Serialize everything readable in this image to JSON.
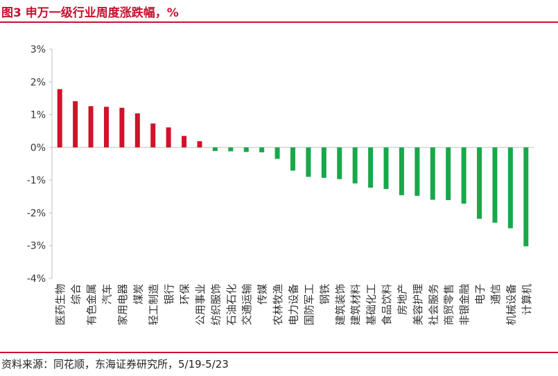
{
  "header": {
    "title": "图3  申万一级行业周度涨跌幅，%"
  },
  "footer": {
    "source": "资料来源：同花顺，东海证券研究所，5/19-5/23"
  },
  "colors": {
    "accent": "#c8102e",
    "positive": "#d0132a",
    "negative": "#18a84a",
    "axis": "#bfbfbf"
  },
  "chart_data": {
    "type": "bar",
    "title": "申万一级行业周度涨跌幅，%",
    "xlabel": "",
    "ylabel": "",
    "ylim": [
      -4,
      3
    ],
    "yticks": [
      "3%",
      "2%",
      "1%",
      "0%",
      "-1%",
      "-2%",
      "-3%",
      "-4%"
    ],
    "grid": false,
    "categories": [
      "医药生物",
      "综合",
      "有色金属",
      "汽车",
      "家用电器",
      "煤炭",
      "轻工制造",
      "银行",
      "环保",
      "公用事业",
      "纺织服饰",
      "石油石化",
      "交通运输",
      "传媒",
      "农林牧渔",
      "电力设备",
      "国防军工",
      "钢铁",
      "建筑装饰",
      "建筑材料",
      "基础化工",
      "食品饮料",
      "房地产",
      "美容护理",
      "社会服务",
      "商贸零售",
      "非银金融",
      "电子",
      "通信",
      "机械设备",
      "计算机"
    ],
    "values": [
      1.78,
      1.41,
      1.26,
      1.24,
      1.21,
      1.04,
      0.73,
      0.61,
      0.35,
      0.19,
      -0.11,
      -0.12,
      -0.14,
      -0.15,
      -0.35,
      -0.71,
      -0.9,
      -0.93,
      -0.97,
      -1.1,
      -1.23,
      -1.27,
      -1.46,
      -1.48,
      -1.6,
      -1.61,
      -1.72,
      -2.18,
      -2.3,
      -2.47,
      -3.02
    ]
  }
}
